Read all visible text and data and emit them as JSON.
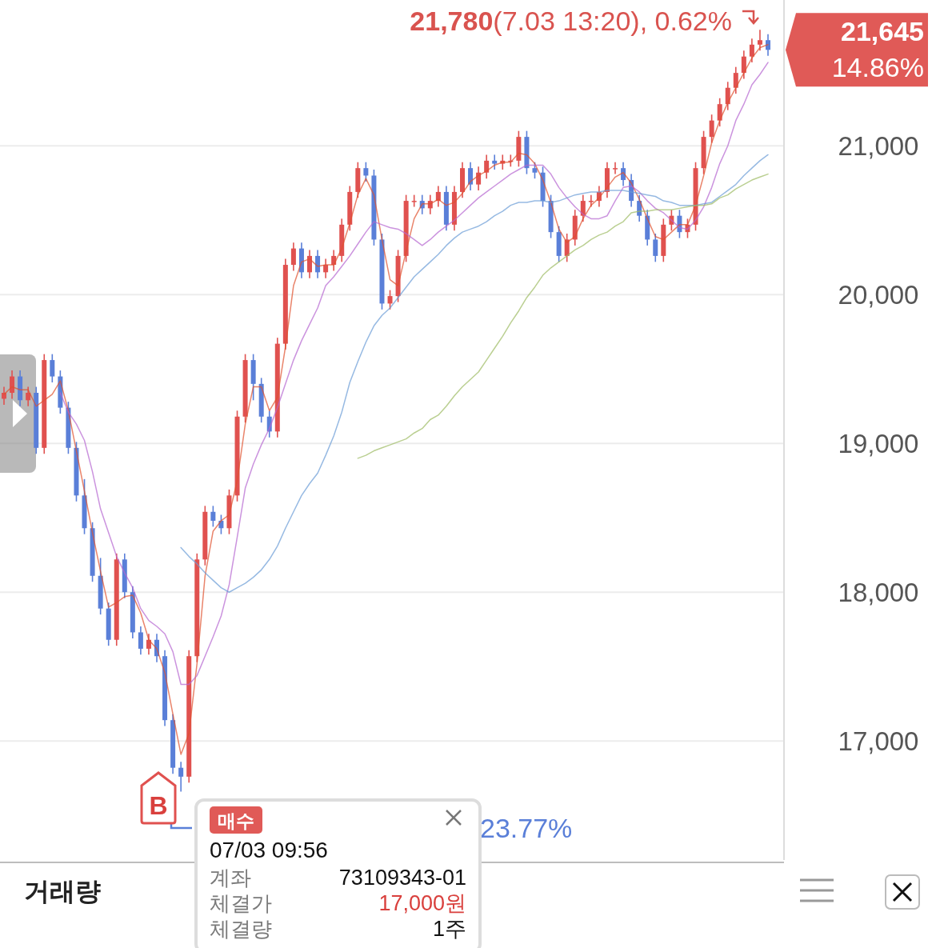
{
  "chart_data": {
    "type": "candlestick",
    "categories": [
      null,
      null,
      null,
      null,
      null,
      null,
      null,
      null,
      null,
      null,
      null,
      null,
      null,
      null,
      null,
      null,
      null,
      null,
      null,
      null,
      null,
      null,
      null,
      null,
      null,
      null,
      null,
      null,
      null,
      null,
      null,
      null,
      null,
      null,
      null,
      null,
      null,
      null,
      null,
      null,
      null,
      null,
      null,
      null,
      null,
      null,
      null,
      null,
      null,
      null,
      null,
      null,
      null,
      null,
      null,
      null,
      null,
      null,
      null,
      null,
      null,
      null,
      null,
      null,
      null,
      null,
      null,
      null,
      null,
      null,
      null,
      null,
      null,
      null,
      null,
      null,
      null,
      null,
      null,
      null,
      null,
      null,
      null,
      null,
      null,
      null,
      null,
      null,
      null,
      null,
      null,
      null,
      null,
      null,
      null,
      null
    ],
    "ohlc": [
      [
        19300,
        19380,
        19260,
        19340
      ],
      [
        19340,
        19490,
        19300,
        19450
      ],
      [
        19450,
        19490,
        19250,
        19290
      ],
      [
        19290,
        19380,
        19250,
        19340
      ],
      [
        19340,
        19380,
        18930,
        18970
      ],
      [
        18970,
        19600,
        18930,
        19560
      ],
      [
        19560,
        19600,
        19410,
        19450
      ],
      [
        19450,
        19490,
        19200,
        19240
      ],
      [
        19240,
        19280,
        18930,
        18970
      ],
      [
        18970,
        19010,
        18610,
        18650
      ],
      [
        18650,
        18760,
        18390,
        18430
      ],
      [
        18430,
        18470,
        18070,
        18110
      ],
      [
        18110,
        18230,
        17850,
        17890
      ],
      [
        17890,
        17930,
        17640,
        17680
      ],
      [
        17680,
        18260,
        17640,
        18220
      ],
      [
        18220,
        18260,
        17960,
        18000
      ],
      [
        18000,
        18040,
        17690,
        17730
      ],
      [
        17730,
        17770,
        17580,
        17620
      ],
      [
        17620,
        17720,
        17580,
        17680
      ],
      [
        17680,
        17720,
        17530,
        17570
      ],
      [
        17570,
        17610,
        17100,
        17140
      ],
      [
        17140,
        17180,
        16780,
        16820
      ],
      [
        16820,
        16860,
        16660,
        16760
      ],
      [
        16760,
        17610,
        16720,
        17570
      ],
      [
        17570,
        18260,
        17530,
        18220
      ],
      [
        18220,
        18580,
        18180,
        18540
      ],
      [
        18540,
        18580,
        18440,
        18480
      ],
      [
        18480,
        18520,
        18390,
        18430
      ],
      [
        18430,
        18690,
        18390,
        18650
      ],
      [
        18650,
        19220,
        18610,
        19180
      ],
      [
        19180,
        19600,
        19140,
        19560
      ],
      [
        19560,
        19600,
        19290,
        19400
      ],
      [
        19400,
        19440,
        19140,
        19180
      ],
      [
        19180,
        19220,
        19040,
        19080
      ],
      [
        19080,
        19710,
        19040,
        19670
      ],
      [
        19670,
        20240,
        19630,
        20200
      ],
      [
        20200,
        20350,
        20160,
        20310
      ],
      [
        20310,
        20350,
        20110,
        20150
      ],
      [
        20150,
        20300,
        20110,
        20260
      ],
      [
        20260,
        20300,
        20110,
        20150
      ],
      [
        20150,
        20240,
        20110,
        20200
      ],
      [
        20200,
        20300,
        20160,
        20260
      ],
      [
        20260,
        20510,
        20220,
        20470
      ],
      [
        20470,
        20730,
        20430,
        20690
      ],
      [
        20690,
        20890,
        20650,
        20850
      ],
      [
        20850,
        20890,
        20760,
        20800
      ],
      [
        20800,
        20840,
        20330,
        20370
      ],
      [
        20370,
        20410,
        19900,
        19940
      ],
      [
        19940,
        20030,
        19900,
        19990
      ],
      [
        19990,
        20300,
        19950,
        20260
      ],
      [
        20260,
        20670,
        20220,
        20630
      ],
      [
        20630,
        20670,
        20590,
        20630
      ],
      [
        20630,
        20670,
        20540,
        20580
      ],
      [
        20580,
        20670,
        20540,
        20630
      ],
      [
        20630,
        20730,
        20590,
        20690
      ],
      [
        20690,
        20730,
        20430,
        20470
      ],
      [
        20470,
        20730,
        20430,
        20690
      ],
      [
        20690,
        20890,
        20650,
        20850
      ],
      [
        20850,
        20890,
        20700,
        20740
      ],
      [
        20740,
        20860,
        20700,
        20820
      ],
      [
        20820,
        20940,
        20780,
        20900
      ],
      [
        20900,
        20940,
        20840,
        20880
      ],
      [
        20880,
        20940,
        20840,
        20900
      ],
      [
        20900,
        20940,
        20860,
        20900
      ],
      [
        20900,
        21100,
        20860,
        21060
      ],
      [
        21060,
        21100,
        20810,
        20850
      ],
      [
        20850,
        20890,
        20780,
        20820
      ],
      [
        20820,
        20860,
        20590,
        20630
      ],
      [
        20630,
        20670,
        20380,
        20420
      ],
      [
        20420,
        20460,
        20220,
        20260
      ],
      [
        20260,
        20410,
        20220,
        20370
      ],
      [
        20370,
        20570,
        20330,
        20530
      ],
      [
        20530,
        20670,
        20490,
        20630
      ],
      [
        20630,
        20670,
        20590,
        20630
      ],
      [
        20630,
        20730,
        20590,
        20690
      ],
      [
        20690,
        20890,
        20650,
        20850
      ],
      [
        20850,
        20890,
        20810,
        20850
      ],
      [
        20850,
        20890,
        20730,
        20770
      ],
      [
        20770,
        20810,
        20590,
        20630
      ],
      [
        20630,
        20670,
        20490,
        20530
      ],
      [
        20530,
        20570,
        20330,
        20370
      ],
      [
        20370,
        20410,
        20220,
        20260
      ],
      [
        20260,
        20510,
        20220,
        20470
      ],
      [
        20470,
        20570,
        20430,
        20530
      ],
      [
        20530,
        20570,
        20380,
        20420
      ],
      [
        20420,
        20510,
        20380,
        20470
      ],
      [
        20470,
        20890,
        20430,
        20850
      ],
      [
        20850,
        21100,
        20810,
        21060
      ],
      [
        21060,
        21210,
        21020,
        21170
      ],
      [
        21170,
        21320,
        21130,
        21280
      ],
      [
        21280,
        21430,
        21240,
        21390
      ],
      [
        21390,
        21530,
        21350,
        21490
      ],
      [
        21490,
        21640,
        21450,
        21600
      ],
      [
        21600,
        21720,
        21560,
        21680
      ],
      [
        21680,
        21780,
        21640,
        21710
      ],
      [
        21710,
        21750,
        21605,
        21645
      ]
    ],
    "series": [
      {
        "type": "line",
        "color": "#e0502c",
        "values": [
          19330,
          19380,
          19360,
          19360,
          19250,
          19290,
          19330,
          19420,
          19220,
          18950,
          18680,
          18400,
          18140,
          17900,
          17930,
          17970,
          17980,
          17860,
          17680,
          17620,
          17460,
          17180,
          16910,
          17050,
          17520,
          18110,
          18410,
          18480,
          18520,
          18750,
          19130,
          19380,
          19380,
          19220,
          19310,
          19650,
          20060,
          20220,
          20240,
          20190,
          20200,
          20200,
          20310,
          20480,
          20670,
          20780,
          20670,
          20370,
          20100,
          20060,
          20290,
          20510,
          20610,
          20610,
          20640,
          20600,
          20620,
          20680,
          20760,
          20800,
          20830,
          20870,
          20890,
          20890,
          20950,
          20940,
          20880,
          20770,
          20620,
          20440,
          20350,
          20390,
          20510,
          20600,
          20650,
          20720,
          20790,
          20820,
          20750,
          20640,
          20510,
          20390,
          20370,
          20420,
          20470,
          20470,
          20600,
          20800,
          21020,
          21170,
          21290,
          21390,
          21490,
          21590,
          21660,
          21680
        ]
      },
      {
        "type": "line",
        "color": "#b565d0",
        "values": [
          null,
          null,
          null,
          null,
          null,
          null,
          null,
          19340,
          19210,
          19130,
          19020,
          18810,
          18560,
          18400,
          18240,
          18130,
          18030,
          17890,
          17810,
          17770,
          17720,
          17600,
          17380,
          17380,
          17440,
          17570,
          17700,
          17840,
          18050,
          18370,
          18700,
          18860,
          18990,
          19100,
          19240,
          19400,
          19560,
          19690,
          19800,
          19910,
          20060,
          20120,
          20190,
          20260,
          20340,
          20420,
          20490,
          20470,
          20450,
          20440,
          20410,
          20370,
          20330,
          20370,
          20420,
          20460,
          20500,
          20550,
          20600,
          20650,
          20690,
          20730,
          20770,
          20810,
          20840,
          20870,
          20870,
          20870,
          20810,
          20720,
          20650,
          20590,
          20540,
          20510,
          20510,
          20530,
          20630,
          20720,
          20730,
          20690,
          20630,
          20580,
          20550,
          20500,
          20450,
          20440,
          20500,
          20590,
          20720,
          20880,
          21000,
          21170,
          21280,
          21410,
          21480,
          21560
        ]
      },
      {
        "type": "line",
        "color": "#6a9bd6",
        "values": [
          null,
          null,
          null,
          null,
          null,
          null,
          null,
          null,
          null,
          null,
          null,
          null,
          null,
          null,
          null,
          null,
          null,
          null,
          null,
          null,
          null,
          null,
          18300,
          18240,
          18190,
          18130,
          18080,
          18030,
          18000,
          18030,
          18060,
          18100,
          18150,
          18220,
          18310,
          18430,
          18540,
          18650,
          18730,
          18800,
          18920,
          19050,
          19210,
          19410,
          19550,
          19680,
          19790,
          19860,
          19910,
          19980,
          20050,
          20120,
          20170,
          20220,
          20270,
          20330,
          20380,
          20420,
          20440,
          20460,
          20490,
          20530,
          20560,
          20600,
          20620,
          20620,
          20630,
          20630,
          20620,
          20630,
          20650,
          20670,
          20680,
          20690,
          20690,
          20700,
          20700,
          20700,
          20690,
          20680,
          20670,
          20660,
          20630,
          20620,
          20600,
          20600,
          20600,
          20610,
          20620,
          20660,
          20700,
          20740,
          20800,
          20850,
          20900,
          20940
        ]
      },
      {
        "type": "line",
        "color": "#9cbb62",
        "values": [
          null,
          null,
          null,
          null,
          null,
          null,
          null,
          null,
          null,
          null,
          null,
          null,
          null,
          null,
          null,
          null,
          null,
          null,
          null,
          null,
          null,
          null,
          null,
          null,
          null,
          null,
          null,
          null,
          null,
          null,
          null,
          null,
          null,
          null,
          null,
          null,
          null,
          null,
          null,
          null,
          null,
          null,
          null,
          null,
          18900,
          18920,
          18950,
          18970,
          18990,
          19010,
          19030,
          19070,
          19100,
          19160,
          19190,
          19250,
          19320,
          19380,
          19430,
          19480,
          19560,
          19640,
          19720,
          19810,
          19890,
          19980,
          20050,
          20130,
          20180,
          20220,
          20260,
          20300,
          20330,
          20370,
          20400,
          20420,
          20460,
          20490,
          20550,
          20560,
          20560,
          20570,
          20570,
          20570,
          20580,
          20590,
          20600,
          20600,
          20610,
          20650,
          20670,
          20710,
          20740,
          20770,
          20790,
          20810
        ]
      }
    ],
    "ylim": [
      16200,
      21980
    ],
    "yticks": [
      {
        "value": 17000,
        "label": "17,000"
      },
      {
        "value": 18000,
        "label": "18,000"
      },
      {
        "value": 19000,
        "label": "19,000"
      },
      {
        "value": 20000,
        "label": "20,000"
      },
      {
        "value": 21000,
        "label": "21,000"
      }
    ],
    "grid": "y",
    "tick_labels": "y",
    "annotations": [
      "**21,780**(7.03 13:20), 0.62%",
      "**21,645**",
      "14.86%",
      "23.77%",
      "매수",
      "07/03 09:56",
      "계좌",
      "73109343-01",
      "체결가",
      "17,000원",
      "체결량",
      "1주",
      "B",
      "거래량"
    ]
  }
}
